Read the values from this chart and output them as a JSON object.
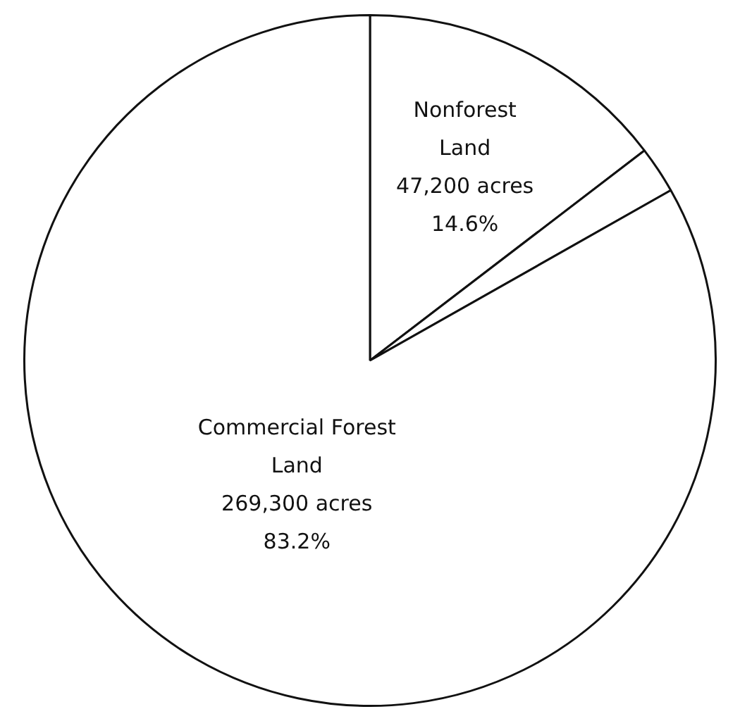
{
  "chart_data": {
    "type": "pie",
    "categories": [
      "Nonforest Land",
      null,
      "Commercial Forest Land"
    ],
    "values": [
      14.6,
      2.2,
      83.2
    ],
    "value_labels": [
      "47,200 acres\n14.6%",
      null,
      "269,300 acres\n83.2%"
    ],
    "colors": [
      "#ffffff",
      "#ffffff",
      "#ffffff"
    ],
    "legend": false
  }
}
